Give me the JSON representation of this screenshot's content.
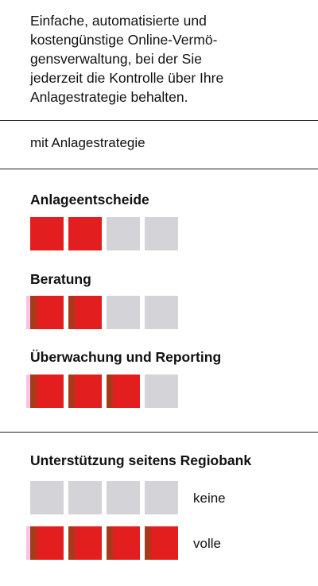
{
  "intro": {
    "text": "Einfache, automatisierte und\nkostengünstige Online-Vermö-\ngensverwaltung, bei der Sie\njederzeit die Kontrolle über Ihre\nAnlagestrategie behalten."
  },
  "strategy_label": "mit Anlagestrategie",
  "ratings": [
    {
      "label": "Anlageentscheide",
      "filled": 2,
      "total": 4
    },
    {
      "label": "Beratung",
      "filled": 2,
      "total": 4
    },
    {
      "label": "Überwachung und Reporting",
      "filled": 3,
      "total": 4
    }
  ],
  "support": {
    "title": "Unterstützung seitens Regiobank",
    "legend": [
      {
        "label": "keine",
        "filled": 0,
        "total": 4
      },
      {
        "label": "volle",
        "filled": 4,
        "total": 4
      }
    ]
  },
  "colors": {
    "filled": "#e31e1e",
    "empty": "#d4d4d8",
    "divider": "#222222"
  }
}
